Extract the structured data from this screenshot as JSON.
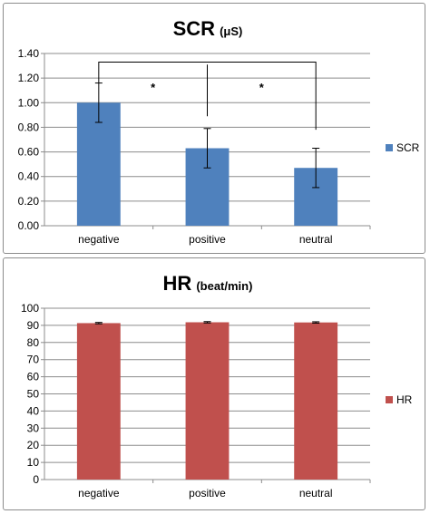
{
  "chart_data": [
    {
      "type": "bar",
      "title": "SCR",
      "title_unit": "(μS)",
      "categories": [
        "negative",
        "positive",
        "neutral"
      ],
      "series": [
        {
          "name": "SCR",
          "values": [
            1.0,
            0.63,
            0.47
          ],
          "error": [
            0.16,
            0.16,
            0.16
          ]
        }
      ],
      "ylim": [
        0,
        1.4
      ],
      "yticks": [
        "0.00",
        "0.20",
        "0.40",
        "0.60",
        "0.80",
        "1.00",
        "1.20",
        "1.40"
      ],
      "ytick_values": [
        0,
        0.2,
        0.4,
        0.6,
        0.8,
        1.0,
        1.2,
        1.4
      ],
      "grid": true,
      "legend": "right",
      "color": "#4f81bd",
      "significance": [
        {
          "from": "negative",
          "to": "neutral",
          "label": "*"
        },
        {
          "from": "negative",
          "to": "positive",
          "label": "*"
        },
        {
          "from": "positive",
          "to": "neutral",
          "label": "*"
        }
      ]
    },
    {
      "type": "bar",
      "title": "HR",
      "title_unit": "(beat/min)",
      "categories": [
        "negative",
        "positive",
        "neutral"
      ],
      "series": [
        {
          "name": "HR",
          "values": [
            91.3,
            91.8,
            91.7
          ],
          "error": [
            0.4,
            0.4,
            0.4
          ]
        }
      ],
      "ylim": [
        0,
        100
      ],
      "yticks": [
        "0",
        "10",
        "20",
        "30",
        "40",
        "50",
        "60",
        "70",
        "80",
        "90",
        "100"
      ],
      "ytick_values": [
        0,
        10,
        20,
        30,
        40,
        50,
        60,
        70,
        80,
        90,
        100
      ],
      "grid": true,
      "legend": "right",
      "color": "#c0504d"
    }
  ]
}
